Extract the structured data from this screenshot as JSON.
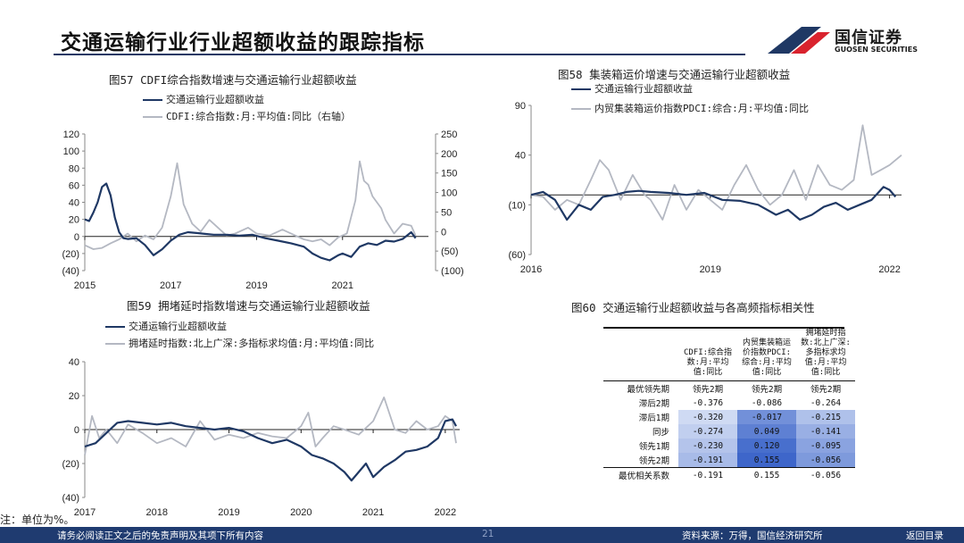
{
  "page_title": "交通运输行业行业超额收益的跟踪指标",
  "brand": {
    "name": "国信证券",
    "sub": "GUOSEN SECURITIES",
    "color": "#1f3864",
    "accent": "#d9232e"
  },
  "note": "注：单位为%。",
  "footer": {
    "disclaimer": "请务必阅读正文之后的免责声明及其项下所有内容",
    "page": "21",
    "source": "资料来源：万得，国信经济研究所",
    "back": "返回目录"
  },
  "chart_data": [
    {
      "id": "fig57",
      "type": "line",
      "title": "图57 CDFI综合指数增速与交通运输行业超额收益",
      "x_ticks": [
        "2015",
        "2017",
        "2019",
        "2021"
      ],
      "x_range": [
        2015,
        2023
      ],
      "y_left": {
        "ticks": [
          "120",
          "100",
          "80",
          "60",
          "40",
          "20",
          "0",
          "(20)",
          "(40)"
        ],
        "range": [
          -40,
          120
        ]
      },
      "y_right": {
        "ticks": [
          "250",
          "200",
          "150",
          "100",
          "50",
          "0",
          "(50)",
          "(100)"
        ],
        "range": [
          -100,
          250
        ]
      },
      "series": [
        {
          "name": "交通运输行业超额收益",
          "axis": "left",
          "color": "#1f3864",
          "x": [
            2015.0,
            2015.1,
            2015.2,
            2015.3,
            2015.4,
            2015.5,
            2015.6,
            2015.7,
            2015.8,
            2015.9,
            2016.0,
            2016.2,
            2016.4,
            2016.6,
            2016.8,
            2017.0,
            2017.2,
            2017.4,
            2017.6,
            2017.8,
            2018.0,
            2018.3,
            2018.6,
            2018.9,
            2019.2,
            2019.5,
            2019.8,
            2020.1,
            2020.3,
            2020.5,
            2020.7,
            2020.9,
            2021.0,
            2021.2,
            2021.4,
            2021.6,
            2021.8,
            2022.0,
            2022.2,
            2022.4,
            2022.6,
            2022.7
          ],
          "y": [
            20,
            18,
            28,
            40,
            58,
            62,
            48,
            22,
            5,
            -2,
            -3,
            -2,
            -10,
            -22,
            -15,
            -5,
            2,
            5,
            4,
            3,
            2,
            2,
            1,
            2,
            -2,
            -5,
            -8,
            -12,
            -20,
            -25,
            -28,
            -22,
            -20,
            -24,
            -12,
            -8,
            -10,
            -5,
            -6,
            -3,
            5,
            -2
          ]
        },
        {
          "name": "CDFI:综合指数:月:平均值:同比（右轴）",
          "axis": "right",
          "color": "#b4b8c2",
          "x": [
            2015.0,
            2015.2,
            2015.4,
            2015.6,
            2015.8,
            2016.0,
            2016.2,
            2016.4,
            2016.6,
            2016.8,
            2017.0,
            2017.15,
            2017.3,
            2017.5,
            2017.7,
            2017.9,
            2018.1,
            2018.3,
            2018.5,
            2018.8,
            2019.0,
            2019.3,
            2019.6,
            2019.9,
            2020.1,
            2020.3,
            2020.5,
            2020.7,
            2020.9,
            2021.1,
            2021.3,
            2021.4,
            2021.5,
            2021.6,
            2021.7,
            2021.9,
            2022.0,
            2022.2,
            2022.4,
            2022.6,
            2022.7
          ],
          "y": [
            -35,
            -45,
            -42,
            -30,
            -20,
            -5,
            -25,
            -10,
            -20,
            10,
            90,
            175,
            70,
            20,
            0,
            30,
            10,
            -10,
            -5,
            10,
            -5,
            -10,
            5,
            -10,
            -20,
            -25,
            -20,
            -35,
            -15,
            -5,
            80,
            180,
            130,
            120,
            90,
            60,
            30,
            -5,
            20,
            15,
            -10
          ]
        }
      ]
    },
    {
      "id": "fig58",
      "type": "line",
      "title": "图58 集装箱运价增速与交通运输行业超额收益",
      "x_ticks": [
        "2016",
        "2019",
        "2022"
      ],
      "x_range": [
        2016,
        2022.2
      ],
      "y_left": {
        "ticks": [
          "90",
          "40",
          "(10)",
          "(60)"
        ],
        "range": [
          -60,
          90
        ]
      },
      "series": [
        {
          "name": "交通运输行业超额收益",
          "color": "#1f3864",
          "x": [
            2016.0,
            2016.2,
            2016.4,
            2016.6,
            2016.8,
            2017.0,
            2017.2,
            2017.4,
            2017.6,
            2017.8,
            2018.0,
            2018.3,
            2018.6,
            2018.9,
            2019.2,
            2019.5,
            2019.8,
            2020.1,
            2020.3,
            2020.5,
            2020.7,
            2020.9,
            2021.1,
            2021.3,
            2021.5,
            2021.7,
            2021.9,
            2022.0,
            2022.1
          ],
          "y": [
            0,
            3,
            -5,
            -25,
            -10,
            -15,
            -2,
            0,
            3,
            4,
            3,
            2,
            0,
            2,
            -5,
            -6,
            -10,
            -20,
            -15,
            -25,
            -20,
            -12,
            -8,
            -15,
            -10,
            -5,
            8,
            5,
            -2
          ]
        },
        {
          "name": "内贸集装箱运价指数PDCI:综合:月:平均值:同比",
          "color": "#b4b8c2",
          "x": [
            2016.0,
            2016.2,
            2016.4,
            2016.6,
            2016.8,
            2017.0,
            2017.15,
            2017.3,
            2017.5,
            2017.7,
            2017.9,
            2018.0,
            2018.2,
            2018.4,
            2018.6,
            2018.8,
            2019.0,
            2019.2,
            2019.4,
            2019.6,
            2019.8,
            2020.0,
            2020.2,
            2020.4,
            2020.6,
            2020.8,
            2021.0,
            2021.2,
            2021.4,
            2021.55,
            2021.7,
            2021.85,
            2022.0,
            2022.2
          ],
          "y": [
            0,
            -2,
            -15,
            -5,
            -10,
            15,
            35,
            25,
            -5,
            20,
            0,
            -5,
            -25,
            10,
            -15,
            5,
            -5,
            -15,
            10,
            30,
            5,
            -10,
            0,
            25,
            -5,
            30,
            10,
            5,
            15,
            70,
            20,
            25,
            30,
            40
          ]
        }
      ]
    },
    {
      "id": "fig59",
      "type": "line",
      "title": "图59 拥堵延时指数增速与交通运输行业超额收益",
      "x_ticks": [
        "2017",
        "2018",
        "2019",
        "2020",
        "2021",
        "2022"
      ],
      "x_range": [
        2017,
        2022.2
      ],
      "y_left": {
        "ticks": [
          "40",
          "20",
          "0",
          "(20)",
          "(40)"
        ],
        "range": [
          -40,
          40
        ]
      },
      "series": [
        {
          "name": "交通运输行业超额收益",
          "color": "#1f3864",
          "x": [
            2017.0,
            2017.15,
            2017.3,
            2017.45,
            2017.6,
            2017.8,
            2018.0,
            2018.2,
            2018.4,
            2018.6,
            2018.8,
            2019.0,
            2019.2,
            2019.4,
            2019.6,
            2019.8,
            2020.0,
            2020.15,
            2020.3,
            2020.45,
            2020.6,
            2020.7,
            2020.8,
            2020.9,
            2021.0,
            2021.15,
            2021.3,
            2021.45,
            2021.6,
            2021.75,
            2021.9,
            2022.0,
            2022.1,
            2022.15
          ],
          "y": [
            -10,
            -8,
            -2,
            4,
            5,
            4,
            3,
            4,
            2,
            1,
            0,
            1,
            -1,
            -5,
            -8,
            -6,
            -10,
            -15,
            -17,
            -20,
            -25,
            -30,
            -25,
            -20,
            -28,
            -22,
            -18,
            -13,
            -12,
            -10,
            -5,
            5,
            6,
            2
          ]
        },
        {
          "name": "拥堵延时指数:北上广深:多指标求均值:月:平均值:同比",
          "color": "#b4b8c2",
          "x": [
            2017.0,
            2017.1,
            2017.2,
            2017.3,
            2017.45,
            2017.6,
            2017.8,
            2018.0,
            2018.2,
            2018.4,
            2018.6,
            2018.8,
            2019.0,
            2019.2,
            2019.4,
            2019.6,
            2019.8,
            2020.0,
            2020.1,
            2020.2,
            2020.3,
            2020.45,
            2020.6,
            2020.8,
            2021.0,
            2021.15,
            2021.3,
            2021.45,
            2021.6,
            2021.75,
            2021.9,
            2022.0,
            2022.1,
            2022.15
          ],
          "y": [
            -15,
            8,
            -5,
            0,
            -8,
            3,
            -2,
            -8,
            -5,
            -10,
            5,
            -6,
            -3,
            -5,
            -2,
            -4,
            -5,
            2,
            10,
            -10,
            -5,
            2,
            0,
            -3,
            5,
            19,
            0,
            -2,
            5,
            0,
            2,
            8,
            5,
            -8
          ]
        }
      ]
    },
    {
      "id": "fig60",
      "type": "table",
      "title": "图60 交通运输行业超额收益与各高频指标相关性",
      "columns": [
        "CDFI:综合指数:月:平均值:同比",
        "内贸集装箱运价指数PDCI:综合:月:平均值:同比",
        "拥堵延时指数:北上广深:多指标求均值:月:平均值:同比"
      ],
      "rows": [
        {
          "label": "最优领先期",
          "values": [
            "领先2期",
            "领先2期",
            "领先2期"
          ]
        },
        {
          "label": "滞后2期",
          "values": [
            "-0.376",
            "-0.086",
            "-0.264"
          ]
        },
        {
          "label": "滞后1期",
          "values": [
            "-0.320",
            "-0.017",
            "-0.215"
          ]
        },
        {
          "label": "同步",
          "values": [
            "-0.274",
            "0.049",
            "-0.141"
          ]
        },
        {
          "label": "领先1期",
          "values": [
            "-0.230",
            "0.120",
            "-0.095"
          ]
        },
        {
          "label": "领先2期",
          "values": [
            "-0.191",
            "0.155",
            "-0.056"
          ]
        },
        {
          "label": "最优相关系数",
          "values": [
            "-0.191",
            "0.155",
            "-0.056"
          ]
        }
      ]
    }
  ]
}
